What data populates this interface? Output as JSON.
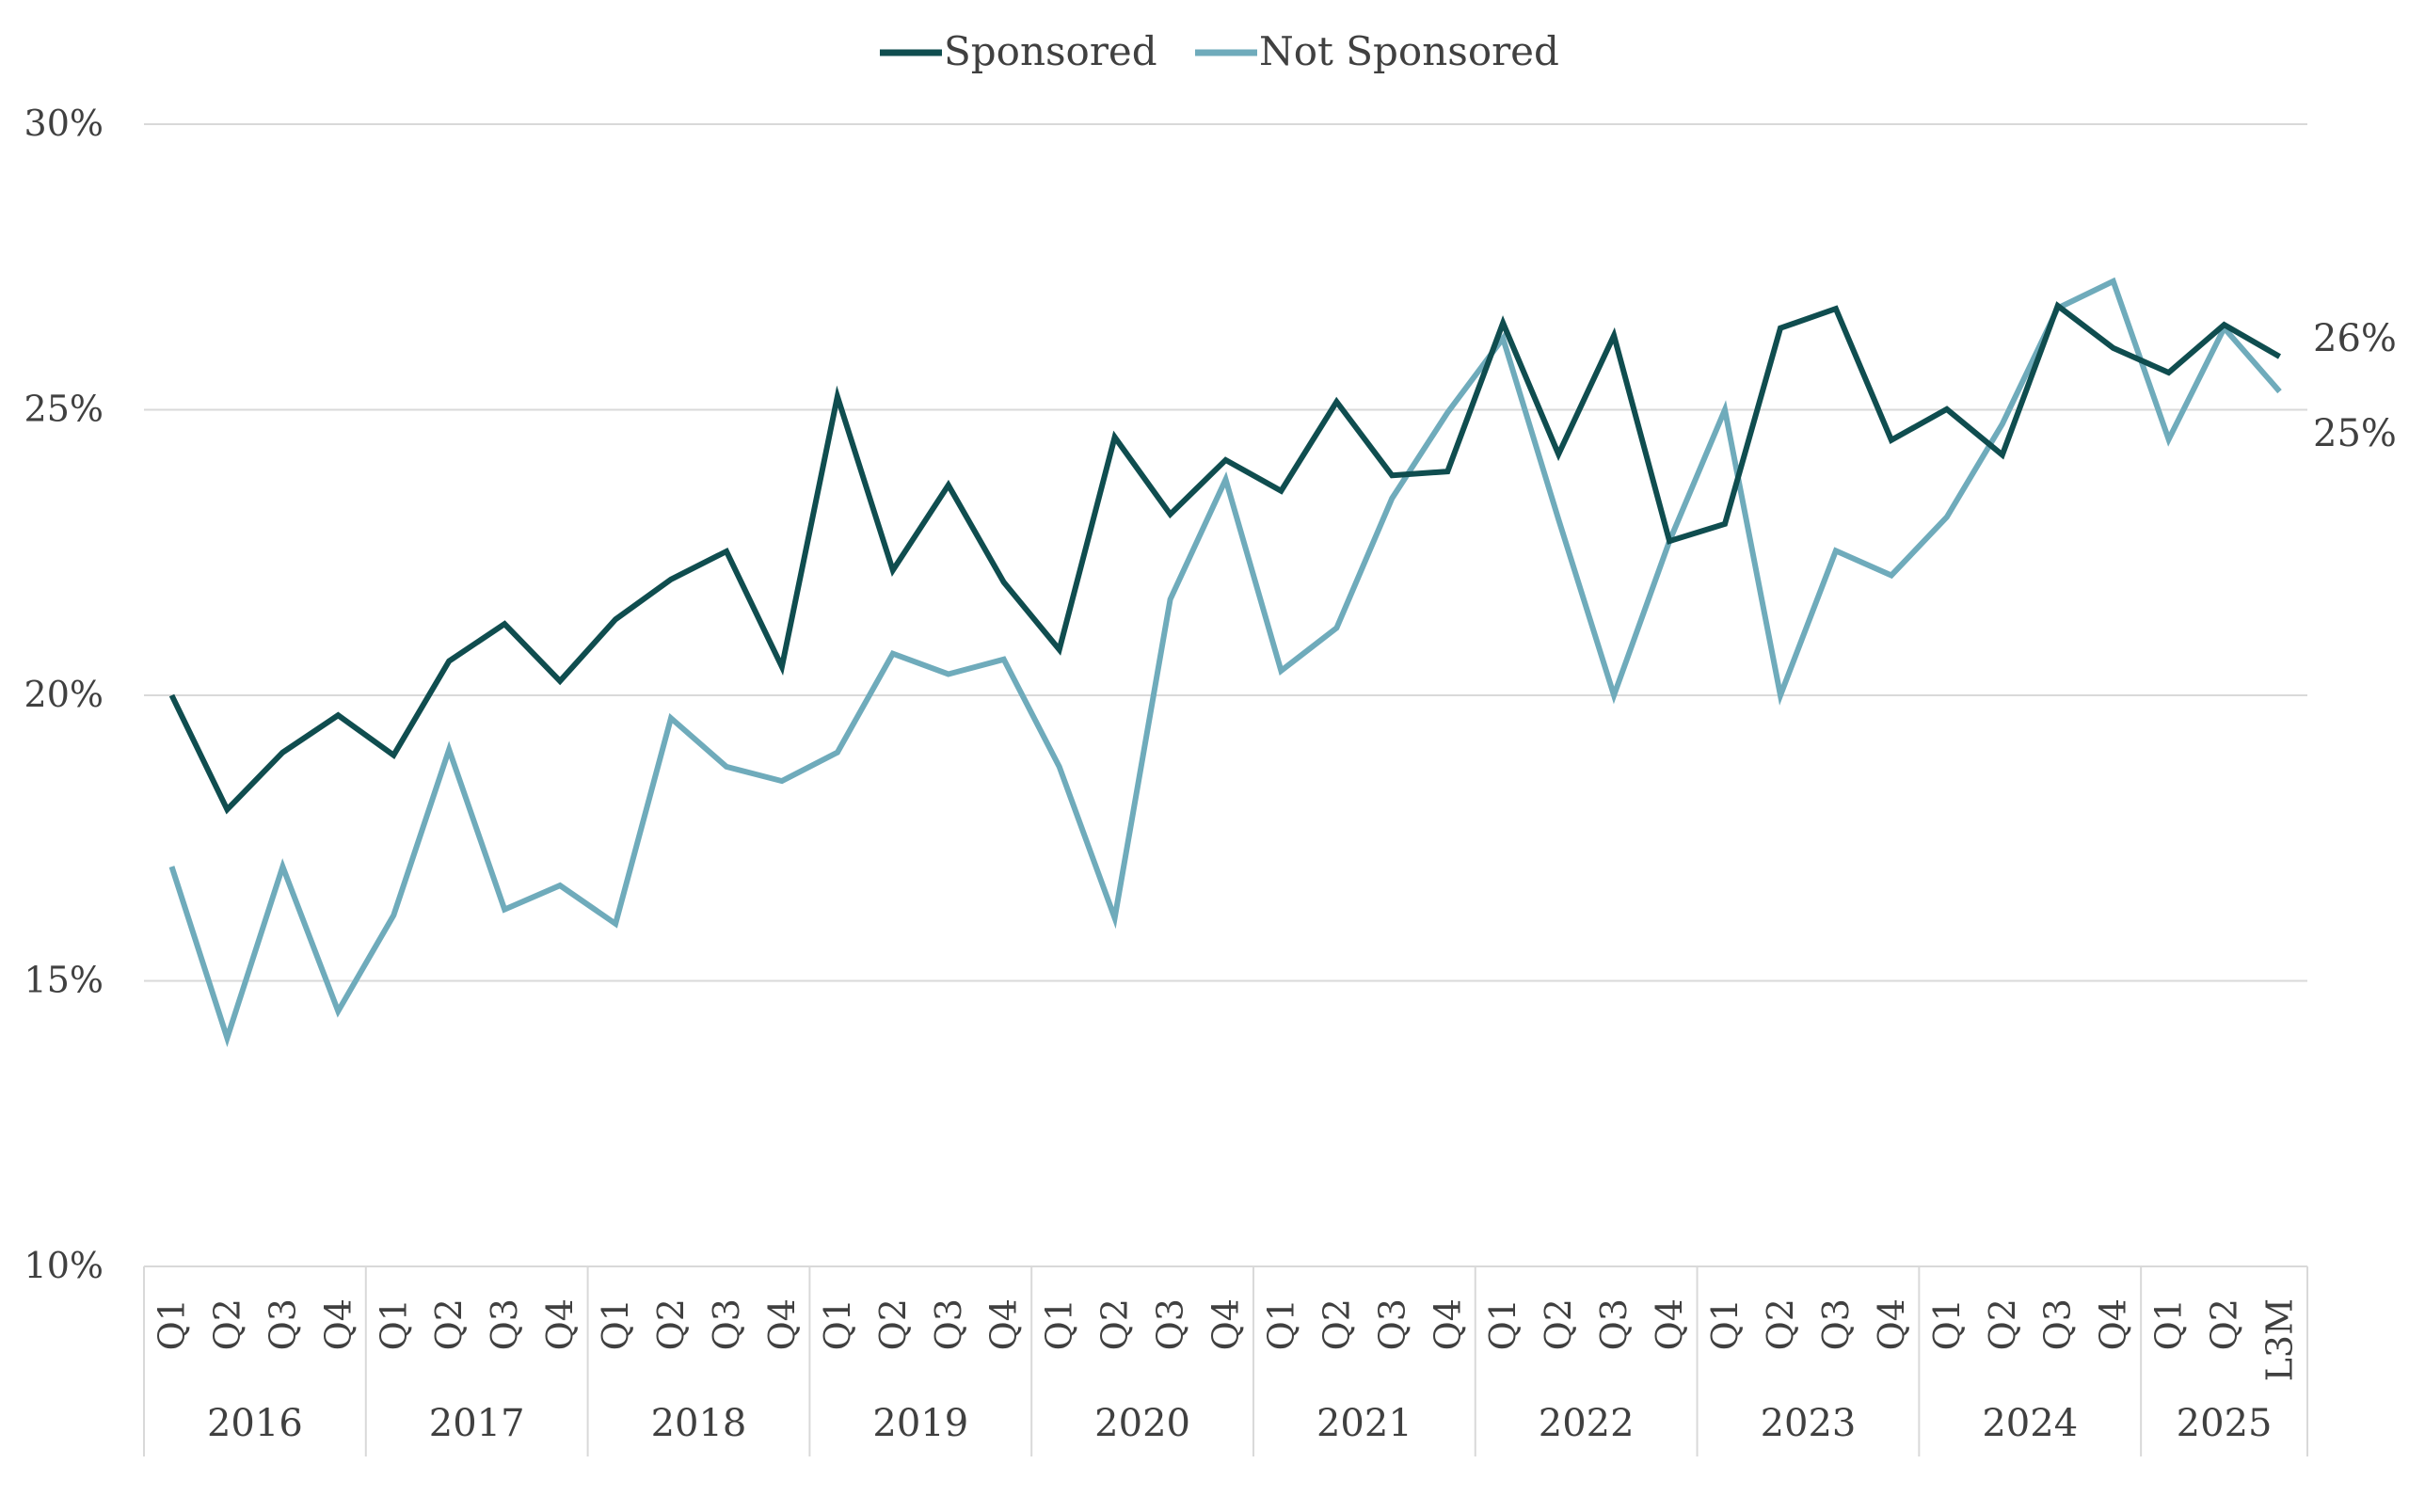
{
  "chart_data": {
    "type": "line",
    "title": "",
    "xlabel": "",
    "ylabel": "",
    "ylim": [
      0.1,
      0.3
    ],
    "y_ticks": [
      "10%",
      "15%",
      "20%",
      "25%",
      "30%"
    ],
    "y_tick_values": [
      0.1,
      0.15,
      0.2,
      0.25,
      0.3
    ],
    "grid": true,
    "legend_position": "top-center",
    "categories": [
      "Q1",
      "Q2",
      "Q3",
      "Q4",
      "Q1",
      "Q2",
      "Q3",
      "Q4",
      "Q1",
      "Q2",
      "Q3",
      "Q4",
      "Q1",
      "Q2",
      "Q3",
      "Q4",
      "Q1",
      "Q2",
      "Q3",
      "Q4",
      "Q1",
      "Q2",
      "Q3",
      "Q4",
      "Q1",
      "Q2",
      "Q3",
      "Q4",
      "Q1",
      "Q2",
      "Q3",
      "Q4",
      "Q1",
      "Q2",
      "Q3",
      "Q4",
      "Q1",
      "Q2",
      "L3M"
    ],
    "year_groups": [
      {
        "label": "2016",
        "count": 4
      },
      {
        "label": "2017",
        "count": 4
      },
      {
        "label": "2018",
        "count": 4
      },
      {
        "label": "2019",
        "count": 4
      },
      {
        "label": "2020",
        "count": 4
      },
      {
        "label": "2021",
        "count": 4
      },
      {
        "label": "2022",
        "count": 4
      },
      {
        "label": "2023",
        "count": 4
      },
      {
        "label": "2024",
        "count": 4
      },
      {
        "label": "2025",
        "count": 3
      }
    ],
    "series": [
      {
        "name": "Sponsored",
        "color": "#0f4d4f",
        "end_label": "26%",
        "values": [
          0.2,
          0.18,
          0.19,
          0.1965,
          0.1895,
          0.206,
          0.2125,
          0.2025,
          0.2133,
          0.2203,
          0.2252,
          0.205,
          0.2523,
          0.2219,
          0.2368,
          0.2198,
          0.208,
          0.2452,
          0.2317,
          0.2412,
          0.2358,
          0.2514,
          0.2385,
          0.2392,
          0.2652,
          0.2422,
          0.263,
          0.227,
          0.23,
          0.2643,
          0.2677,
          0.2447,
          0.2501,
          0.2421,
          0.2682,
          0.2608,
          0.2565,
          0.2649,
          0.2593
        ]
      },
      {
        "name": "Not Sponsored",
        "color": "#6fabbb",
        "end_label": "25%",
        "values": [
          0.17,
          0.14,
          0.17,
          0.1447,
          0.1615,
          0.1905,
          0.1625,
          0.1667,
          0.16,
          0.196,
          0.1875,
          0.185,
          0.19,
          0.2073,
          0.2037,
          0.2063,
          0.1875,
          0.161,
          0.2168,
          0.2378,
          0.2043,
          0.2118,
          0.2345,
          0.2495,
          0.2625,
          0.2308,
          0.2,
          0.227,
          0.25,
          0.2,
          0.2253,
          0.221,
          0.2312,
          0.2475,
          0.2678,
          0.2725,
          0.2448,
          0.2643,
          0.2532
        ]
      }
    ]
  }
}
